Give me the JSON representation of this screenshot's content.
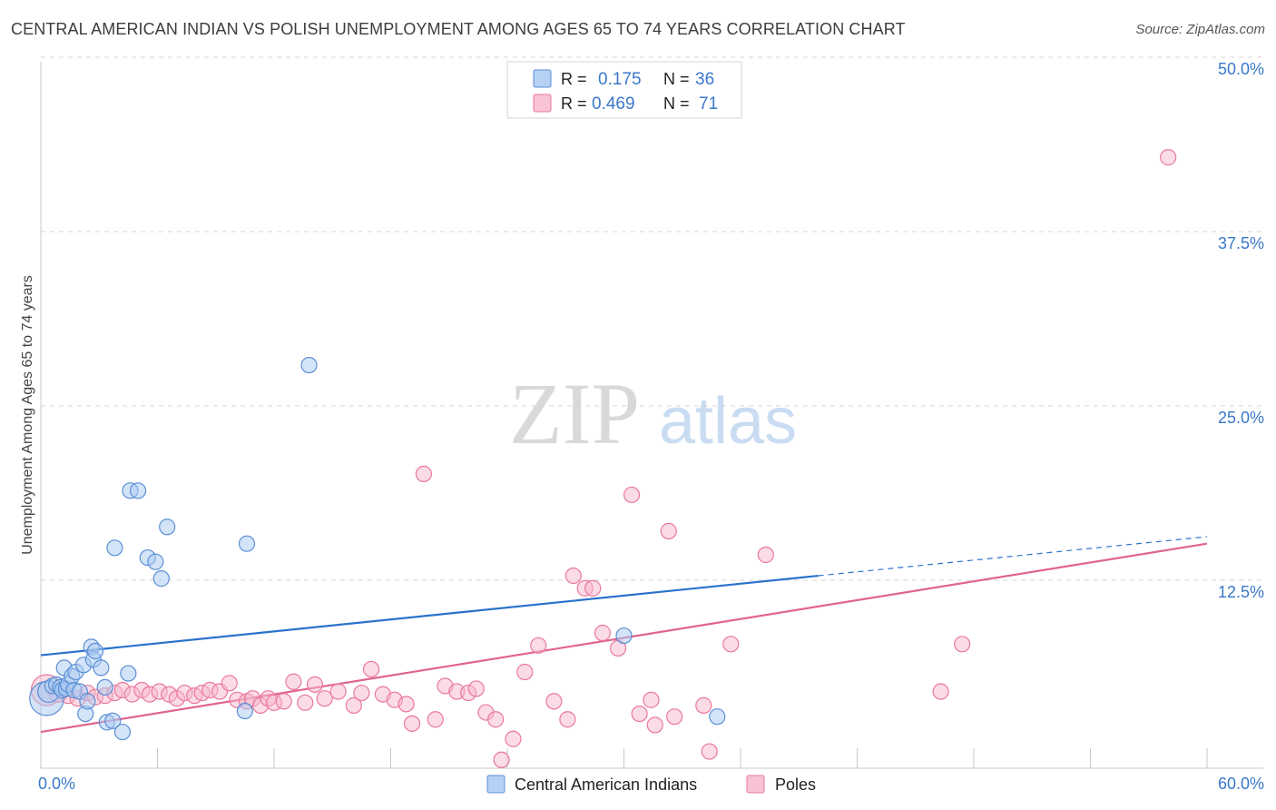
{
  "title": "CENTRAL AMERICAN INDIAN VS POLISH UNEMPLOYMENT AMONG AGES 65 TO 74 YEARS CORRELATION CHART",
  "source": "Source: ZipAtlas.com",
  "watermark": {
    "zip": "ZIP",
    "atlas": "atlas"
  },
  "colors": {
    "blue_fill": "#a9c9f2",
    "blue_stroke": "#5b8fd6",
    "blue_line": "#2a72cc",
    "pink_fill": "#f7b8cc",
    "pink_stroke": "#e9799c",
    "pink_line": "#e0648f",
    "axis_label": "#3a78c9",
    "grid": "#d4d4d4"
  },
  "legend_top": [
    {
      "name": "Central American Indians",
      "r_label": "R =",
      "r_value": "0.175",
      "n_label": "N =",
      "n_value": "36"
    },
    {
      "name": "Poles",
      "r_label": "R =",
      "r_value": "0.469",
      "n_label": "N =",
      "n_value": "71"
    }
  ],
  "chart_data": {
    "type": "scatter",
    "title": "CENTRAL AMERICAN INDIAN VS POLISH UNEMPLOYMENT AMONG AGES 65 TO 74 YEARS CORRELATION CHART",
    "xlabel": "",
    "ylabel": "Unemployment Among Ages 65 to 74 years",
    "xlim": [
      0,
      60
    ],
    "ylim": [
      0,
      50
    ],
    "x_tick_labels": [
      "0.0%",
      "60.0%"
    ],
    "y_ticks": [
      12.5,
      25.0,
      37.5,
      50.0
    ],
    "y_tick_labels": [
      "12.5%",
      "25.0%",
      "37.5%",
      "50.0%"
    ],
    "legend": [
      "Central American Indians",
      "Poles"
    ],
    "series": [
      {
        "name": "Central American Indians",
        "r": 0.175,
        "n": 36,
        "trend": {
          "x0": 0,
          "y0": 8.1,
          "x1": 40,
          "y1": 13.8,
          "dash_to_x": 60,
          "dash_to_y": 16.6
        },
        "points": [
          [
            0.3,
            5.0,
            2.2
          ],
          [
            0.4,
            5.5,
            1.4
          ],
          [
            0.6,
            5.9,
            1.0
          ],
          [
            0.8,
            6.0,
            1.0
          ],
          [
            1.0,
            5.8,
            1.0
          ],
          [
            1.1,
            5.6,
            1.0
          ],
          [
            1.2,
            7.2,
            1.0
          ],
          [
            1.3,
            5.7,
            1.0
          ],
          [
            1.4,
            6.0,
            1.0
          ],
          [
            1.6,
            6.6,
            1.0
          ],
          [
            1.7,
            5.6,
            1.0
          ],
          [
            1.8,
            6.9,
            1.0
          ],
          [
            2.0,
            5.5,
            1.0
          ],
          [
            2.2,
            7.4,
            1.0
          ],
          [
            2.3,
            3.9,
            1.0
          ],
          [
            2.4,
            4.8,
            1.0
          ],
          [
            2.6,
            8.7,
            1.0
          ],
          [
            2.7,
            7.8,
            1.0
          ],
          [
            2.8,
            8.4,
            1.0
          ],
          [
            3.1,
            7.2,
            1.0
          ],
          [
            3.3,
            5.8,
            1.0
          ],
          [
            3.4,
            3.3,
            1.0
          ],
          [
            3.7,
            3.4,
            1.0
          ],
          [
            3.8,
            15.8,
            1.0
          ],
          [
            4.2,
            2.6,
            1.0
          ],
          [
            4.5,
            6.8,
            1.0
          ],
          [
            4.6,
            19.9,
            1.0
          ],
          [
            5.0,
            19.9,
            1.0
          ],
          [
            5.5,
            15.1,
            1.0
          ],
          [
            5.9,
            14.8,
            1.0
          ],
          [
            6.2,
            13.6,
            1.0
          ],
          [
            6.5,
            17.3,
            1.0
          ],
          [
            10.5,
            4.1,
            1.0
          ],
          [
            10.6,
            16.1,
            1.0
          ],
          [
            13.8,
            28.9,
            1.0
          ],
          [
            30.0,
            9.5,
            1.0
          ],
          [
            34.8,
            3.7,
            1.0
          ]
        ]
      },
      {
        "name": "Poles",
        "r": 0.469,
        "n": 71,
        "trend": {
          "x0": 0,
          "y0": 2.6,
          "x1": 60,
          "y1": 16.1
        },
        "points": [
          [
            0.3,
            5.6,
            2.0
          ],
          [
            0.9,
            5.4,
            1.2
          ],
          [
            1.4,
            5.2,
            1.0
          ],
          [
            1.9,
            5.0,
            1.0
          ],
          [
            2.4,
            5.4,
            1.0
          ],
          [
            2.8,
            5.1,
            1.0
          ],
          [
            3.3,
            5.2,
            1.0
          ],
          [
            3.8,
            5.4,
            1.0
          ],
          [
            4.2,
            5.6,
            1.0
          ],
          [
            4.7,
            5.3,
            1.0
          ],
          [
            5.2,
            5.6,
            1.0
          ],
          [
            5.6,
            5.3,
            1.0
          ],
          [
            6.1,
            5.5,
            1.0
          ],
          [
            6.6,
            5.3,
            1.0
          ],
          [
            7.0,
            5.0,
            1.0
          ],
          [
            7.4,
            5.4,
            1.0
          ],
          [
            7.9,
            5.2,
            1.0
          ],
          [
            8.3,
            5.4,
            1.0
          ],
          [
            8.7,
            5.6,
            1.0
          ],
          [
            9.2,
            5.5,
            1.0
          ],
          [
            9.7,
            6.1,
            1.0
          ],
          [
            10.1,
            4.9,
            1.0
          ],
          [
            10.6,
            4.8,
            1.0
          ],
          [
            10.9,
            5.0,
            1.0
          ],
          [
            11.3,
            4.5,
            1.0
          ],
          [
            11.7,
            5.0,
            1.0
          ],
          [
            12.0,
            4.7,
            1.0
          ],
          [
            12.5,
            4.8,
            1.0
          ],
          [
            13.0,
            6.2,
            1.0
          ],
          [
            13.6,
            4.7,
            1.0
          ],
          [
            14.1,
            6.0,
            1.0
          ],
          [
            14.6,
            5.0,
            1.0
          ],
          [
            15.3,
            5.5,
            1.0
          ],
          [
            16.1,
            4.5,
            1.0
          ],
          [
            16.5,
            5.4,
            1.0
          ],
          [
            17.0,
            7.1,
            1.0
          ],
          [
            17.6,
            5.3,
            1.0
          ],
          [
            18.2,
            4.9,
            1.0
          ],
          [
            18.8,
            4.6,
            1.0
          ],
          [
            19.1,
            3.2,
            1.0
          ],
          [
            19.7,
            21.1,
            1.0
          ],
          [
            20.3,
            3.5,
            1.0
          ],
          [
            20.8,
            5.9,
            1.0
          ],
          [
            21.4,
            5.5,
            1.0
          ],
          [
            22.0,
            5.4,
            1.0
          ],
          [
            22.4,
            5.7,
            1.0
          ],
          [
            22.9,
            4.0,
            1.0
          ],
          [
            23.4,
            3.5,
            1.0
          ],
          [
            23.7,
            0.6,
            1.0
          ],
          [
            24.3,
            2.1,
            1.0
          ],
          [
            24.9,
            6.9,
            1.0
          ],
          [
            25.6,
            8.8,
            1.0
          ],
          [
            26.4,
            4.8,
            1.0
          ],
          [
            27.1,
            3.5,
            1.0
          ],
          [
            27.4,
            13.8,
            1.0
          ],
          [
            28.0,
            12.9,
            1.0
          ],
          [
            28.4,
            12.9,
            1.0
          ],
          [
            28.9,
            9.7,
            1.0
          ],
          [
            29.7,
            8.6,
            1.0
          ],
          [
            30.4,
            19.6,
            1.0
          ],
          [
            30.8,
            3.9,
            1.0
          ],
          [
            31.4,
            4.9,
            1.0
          ],
          [
            31.6,
            3.1,
            1.0
          ],
          [
            32.3,
            17.0,
            1.0
          ],
          [
            32.6,
            3.7,
            1.0
          ],
          [
            34.1,
            4.5,
            1.0
          ],
          [
            34.4,
            1.2,
            1.0
          ],
          [
            35.5,
            8.9,
            1.0
          ],
          [
            37.3,
            15.3,
            1.0
          ],
          [
            46.3,
            5.5,
            1.0
          ],
          [
            47.4,
            8.9,
            1.0
          ],
          [
            58.0,
            43.8,
            1.0
          ]
        ]
      }
    ]
  }
}
